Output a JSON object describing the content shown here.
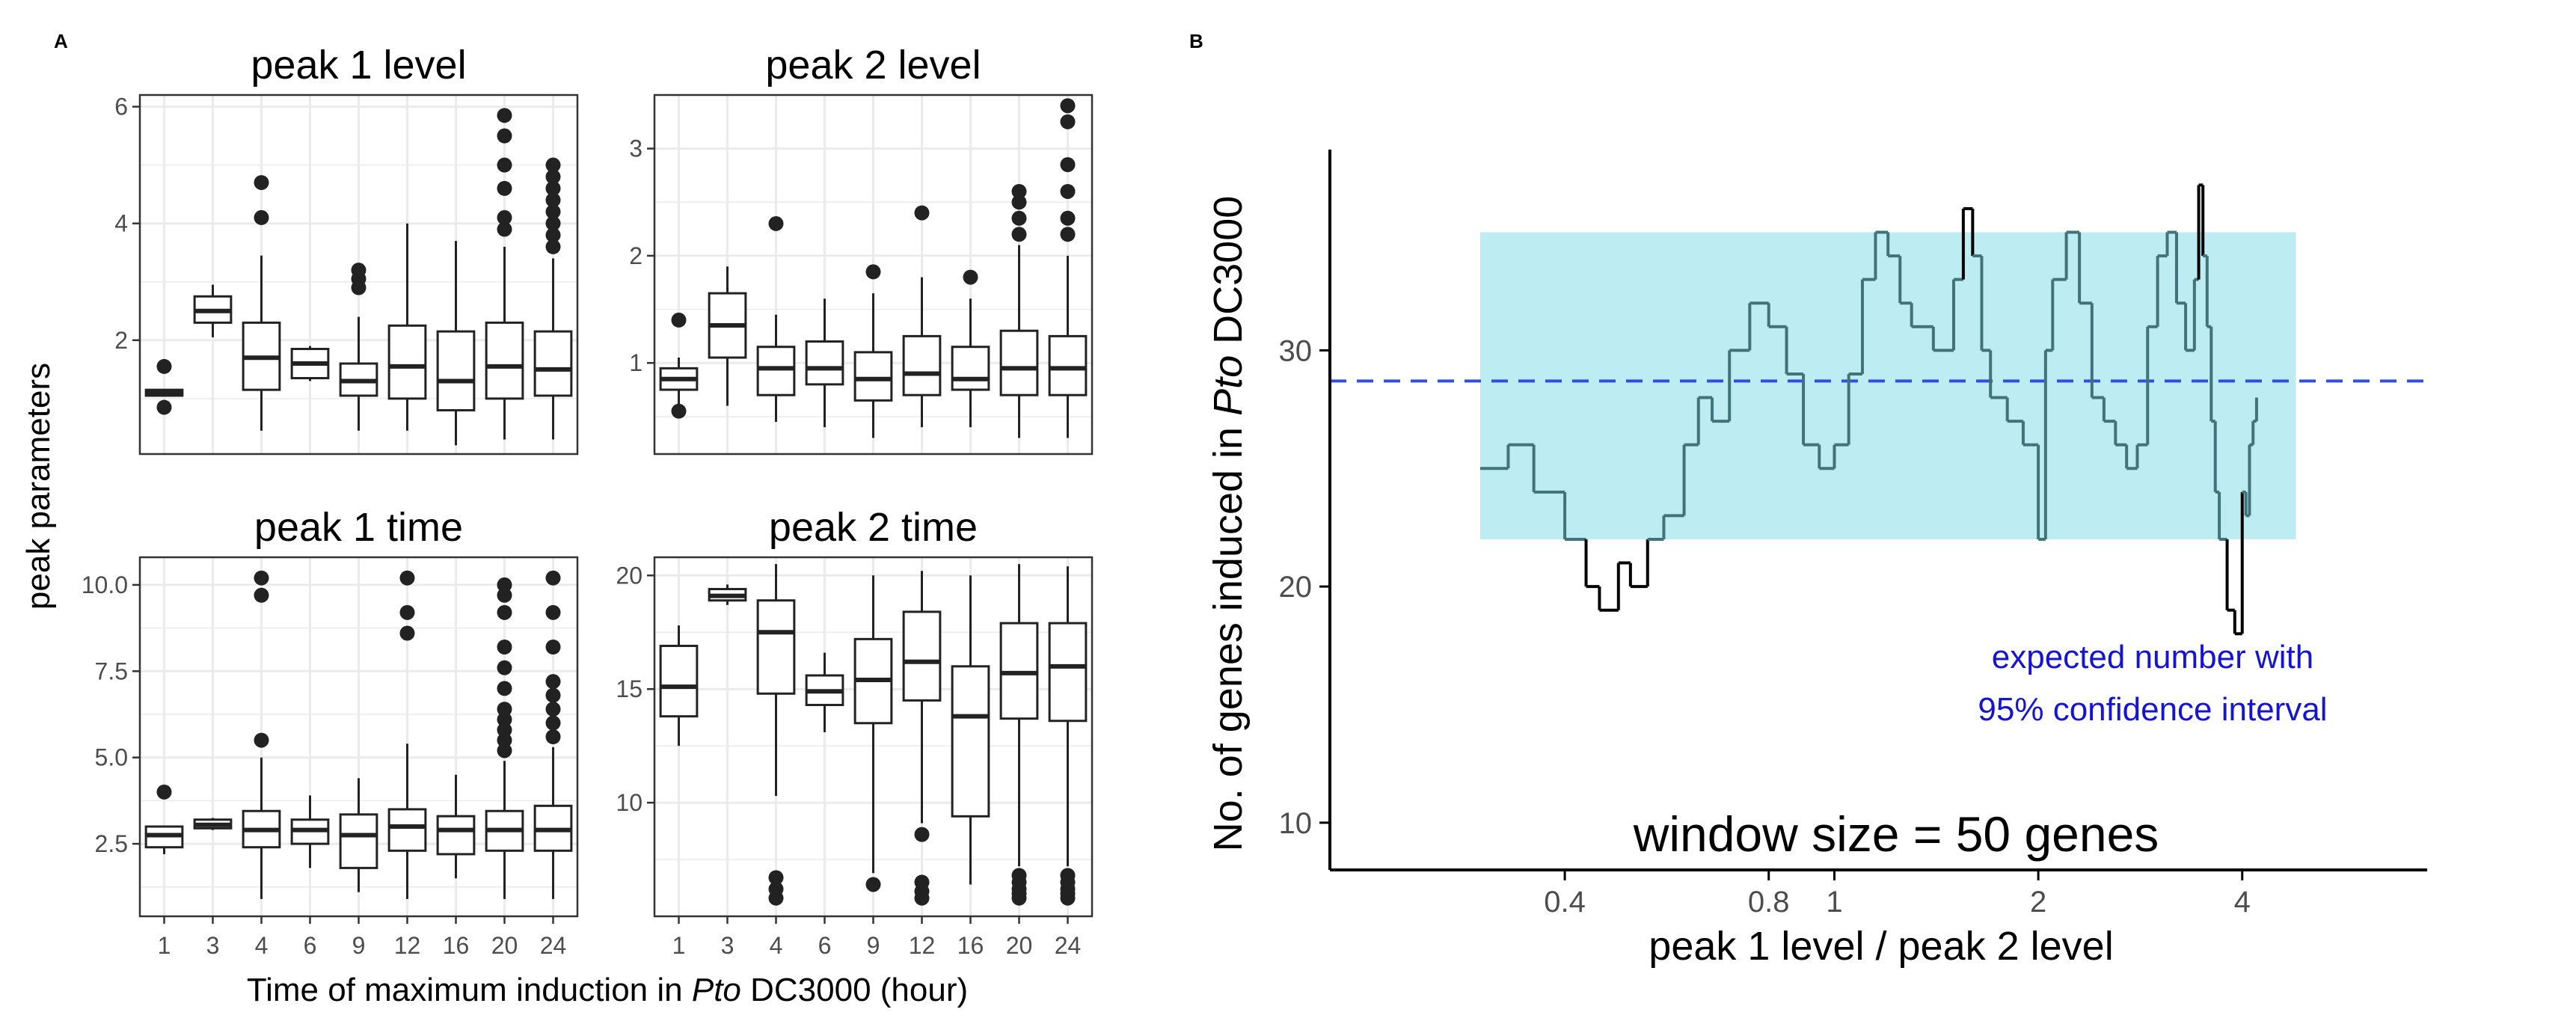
{
  "panels": {
    "a_label": "A",
    "b_label": "B"
  },
  "panel_a": {
    "ylabel": "peak parameters",
    "xlabel_prefix": "Time of maximum induction in ",
    "xlabel_italic": "Pto",
    "xlabel_suffix": " DC3000 (hour)"
  },
  "panel_b": {
    "ylabel_prefix": "No. of genes induced in ",
    "ylabel_italic": "Pto",
    "ylabel_suffix": " DC3000",
    "annotation_line1": "expected number with",
    "annotation_line2": "95% confidence interval",
    "window_text": "window size = 50 genes"
  },
  "colors": {
    "ribbon": "#bdecf2",
    "inside_line": "#41737a",
    "outside_line": "#000000",
    "dashed": "#2f4fe0",
    "annotation": "#1414d2",
    "box_outline": "#222222",
    "grid": "#ebebeb",
    "panel_border": "#333333"
  },
  "chart_data": [
    {
      "type": "boxplot",
      "title": "peak 1 level",
      "categories": [
        "1",
        "3",
        "4",
        "6",
        "9",
        "12",
        "16",
        "20",
        "24"
      ],
      "ylim": [
        0.05,
        6.2
      ],
      "yticks": [
        2,
        4,
        6
      ],
      "boxes": [
        {
          "q1": 1.05,
          "med": 1.1,
          "q3": 1.15,
          "lo": 1.05,
          "hi": 1.15,
          "out": [
            1.55,
            0.85
          ]
        },
        {
          "q1": 2.3,
          "med": 2.5,
          "q3": 2.75,
          "lo": 2.05,
          "hi": 2.95,
          "out": []
        },
        {
          "q1": 1.15,
          "med": 1.7,
          "q3": 2.3,
          "lo": 0.45,
          "hi": 3.45,
          "out": [
            4.1,
            4.7
          ]
        },
        {
          "q1": 1.35,
          "med": 1.6,
          "q3": 1.85,
          "lo": 1.3,
          "hi": 1.9,
          "out": []
        },
        {
          "q1": 1.05,
          "med": 1.3,
          "q3": 1.6,
          "lo": 0.45,
          "hi": 2.4,
          "out": [
            2.9,
            3.05,
            3.2
          ]
        },
        {
          "q1": 1.0,
          "med": 1.55,
          "q3": 2.25,
          "lo": 0.45,
          "hi": 4.0,
          "out": []
        },
        {
          "q1": 0.8,
          "med": 1.3,
          "q3": 2.15,
          "lo": 0.2,
          "hi": 3.7,
          "out": []
        },
        {
          "q1": 1.0,
          "med": 1.55,
          "q3": 2.3,
          "lo": 0.3,
          "hi": 3.6,
          "out": [
            3.9,
            4.1,
            4.6,
            5.0,
            5.5,
            5.85
          ]
        },
        {
          "q1": 1.05,
          "med": 1.5,
          "q3": 2.15,
          "lo": 0.3,
          "hi": 3.4,
          "out": [
            3.6,
            3.8,
            4.0,
            4.2,
            4.4,
            4.6,
            4.8,
            5.0
          ]
        }
      ]
    },
    {
      "type": "boxplot",
      "title": "peak 2 level",
      "categories": [
        "1",
        "3",
        "4",
        "6",
        "9",
        "12",
        "16",
        "20",
        "24"
      ],
      "ylim": [
        0.15,
        3.5
      ],
      "yticks": [
        1,
        2,
        3
      ],
      "boxes": [
        {
          "q1": 0.75,
          "med": 0.85,
          "q3": 0.95,
          "lo": 0.6,
          "hi": 1.05,
          "out": [
            1.4,
            0.55
          ]
        },
        {
          "q1": 1.05,
          "med": 1.35,
          "q3": 1.65,
          "lo": 0.6,
          "hi": 1.9,
          "out": []
        },
        {
          "q1": 0.7,
          "med": 0.95,
          "q3": 1.15,
          "lo": 0.45,
          "hi": 1.45,
          "out": [
            2.3
          ]
        },
        {
          "q1": 0.8,
          "med": 0.95,
          "q3": 1.2,
          "lo": 0.4,
          "hi": 1.6,
          "out": []
        },
        {
          "q1": 0.65,
          "med": 0.85,
          "q3": 1.1,
          "lo": 0.3,
          "hi": 1.65,
          "out": [
            1.85
          ]
        },
        {
          "q1": 0.7,
          "med": 0.9,
          "q3": 1.25,
          "lo": 0.4,
          "hi": 1.8,
          "out": [
            2.4
          ]
        },
        {
          "q1": 0.75,
          "med": 0.85,
          "q3": 1.15,
          "lo": 0.4,
          "hi": 1.6,
          "out": [
            1.8
          ]
        },
        {
          "q1": 0.7,
          "med": 0.95,
          "q3": 1.3,
          "lo": 0.3,
          "hi": 2.1,
          "out": [
            2.2,
            2.35,
            2.5,
            2.6
          ]
        },
        {
          "q1": 0.7,
          "med": 0.95,
          "q3": 1.25,
          "lo": 0.3,
          "hi": 2.0,
          "out": [
            2.2,
            2.35,
            2.6,
            2.85,
            3.25,
            3.4
          ]
        }
      ]
    },
    {
      "type": "boxplot",
      "title": "peak 1 time",
      "categories": [
        "1",
        "3",
        "4",
        "6",
        "9",
        "12",
        "16",
        "20",
        "24"
      ],
      "ylim": [
        0.4,
        10.8
      ],
      "yticks": [
        2.5,
        5.0,
        7.5,
        10.0
      ],
      "ytick_labels": [
        "2.5",
        "5.0",
        "7.5",
        "10.0"
      ],
      "boxes": [
        {
          "q1": 2.4,
          "med": 2.75,
          "q3": 3.0,
          "lo": 2.2,
          "hi": 3.0,
          "out": [
            4.0
          ]
        },
        {
          "q1": 2.95,
          "med": 3.05,
          "q3": 3.2,
          "lo": 2.9,
          "hi": 3.25,
          "out": []
        },
        {
          "q1": 2.4,
          "med": 2.9,
          "q3": 3.45,
          "lo": 0.9,
          "hi": 5.0,
          "out": [
            5.5,
            9.7,
            10.2
          ]
        },
        {
          "q1": 2.5,
          "med": 2.9,
          "q3": 3.2,
          "lo": 1.8,
          "hi": 3.9,
          "out": []
        },
        {
          "q1": 1.8,
          "med": 2.75,
          "q3": 3.35,
          "lo": 1.1,
          "hi": 4.4,
          "out": []
        },
        {
          "q1": 2.3,
          "med": 3.0,
          "q3": 3.5,
          "lo": 0.9,
          "hi": 5.4,
          "out": [
            8.6,
            9.2,
            10.2
          ]
        },
        {
          "q1": 2.2,
          "med": 2.9,
          "q3": 3.3,
          "lo": 1.5,
          "hi": 4.5,
          "out": []
        },
        {
          "q1": 2.3,
          "med": 2.9,
          "q3": 3.45,
          "lo": 0.9,
          "hi": 4.9,
          "out": [
            5.2,
            5.5,
            5.8,
            6.1,
            6.4,
            7.0,
            7.6,
            8.2,
            9.2,
            9.7,
            10.0
          ]
        },
        {
          "q1": 2.3,
          "med": 2.9,
          "q3": 3.6,
          "lo": 0.9,
          "hi": 5.3,
          "out": [
            5.6,
            6.0,
            6.4,
            6.8,
            7.2,
            8.2,
            9.2,
            10.2
          ]
        }
      ]
    },
    {
      "type": "boxplot",
      "title": "peak 2 time",
      "categories": [
        "1",
        "3",
        "4",
        "6",
        "9",
        "12",
        "16",
        "20",
        "24"
      ],
      "ylim": [
        5.0,
        20.8
      ],
      "yticks": [
        10,
        15,
        20
      ],
      "boxes": [
        {
          "q1": 13.8,
          "med": 15.1,
          "q3": 16.9,
          "lo": 12.5,
          "hi": 17.8,
          "out": []
        },
        {
          "q1": 18.9,
          "med": 19.1,
          "q3": 19.4,
          "lo": 18.7,
          "hi": 19.6,
          "out": []
        },
        {
          "q1": 14.8,
          "med": 17.5,
          "q3": 18.9,
          "lo": 10.3,
          "hi": 20.5,
          "out": [
            5.8,
            6.2,
            6.7
          ]
        },
        {
          "q1": 14.3,
          "med": 14.9,
          "q3": 15.6,
          "lo": 13.1,
          "hi": 16.6,
          "out": []
        },
        {
          "q1": 13.5,
          "med": 15.4,
          "q3": 17.2,
          "lo": 6.9,
          "hi": 20.0,
          "out": [
            6.4
          ]
        },
        {
          "q1": 14.5,
          "med": 16.2,
          "q3": 18.4,
          "lo": 9.1,
          "hi": 20.2,
          "out": [
            5.8,
            6.1,
            6.5,
            8.6
          ]
        },
        {
          "q1": 9.4,
          "med": 13.8,
          "q3": 16.0,
          "lo": 6.4,
          "hi": 20.0,
          "out": []
        },
        {
          "q1": 13.7,
          "med": 15.7,
          "q3": 17.9,
          "lo": 7.2,
          "hi": 20.5,
          "out": [
            5.8,
            6.0,
            6.2,
            6.5,
            6.8
          ]
        },
        {
          "q1": 13.6,
          "med": 16.0,
          "q3": 17.9,
          "lo": 7.2,
          "hi": 20.4,
          "out": [
            5.8,
            6.0,
            6.2,
            6.5,
            6.8
          ]
        }
      ]
    },
    {
      "type": "line",
      "xlabel": "peak 1 level / peak 2 level",
      "x_scale": "log",
      "xlim": [
        0.18,
        7.5
      ],
      "ylim": [
        8.0,
        38.5
      ],
      "xticks": [
        0.4,
        0.8,
        1,
        2,
        4
      ],
      "yticks": [
        10,
        20,
        30
      ],
      "expected": 28.7,
      "ci": [
        22,
        35
      ],
      "ci_x": [
        0.3,
        4.8
      ],
      "series": [
        {
          "x": [
            0.3,
            0.33,
            0.36,
            0.4,
            0.43,
            0.45,
            0.48,
            0.5,
            0.53,
            0.56,
            0.6,
            0.63,
            0.66,
            0.7,
            0.75,
            0.8,
            0.85,
            0.9,
            0.95,
            1.0,
            1.05,
            1.1,
            1.15,
            1.2,
            1.25,
            1.3,
            1.4,
            1.5,
            1.55,
            1.6,
            1.65,
            1.7,
            1.8,
            1.9,
            1.95,
            2.0,
            2.05,
            2.1,
            2.2,
            2.3,
            2.4,
            2.5,
            2.6,
            2.7,
            2.8,
            2.9,
            3.0,
            3.1,
            3.2,
            3.3,
            3.4,
            3.45,
            3.5,
            3.55,
            3.6,
            3.65,
            3.7,
            3.8,
            3.9,
            4.0,
            4.05,
            4.1,
            4.15,
            4.2
          ],
          "y": [
            25,
            26,
            24,
            22,
            20,
            19,
            21,
            20,
            22,
            23,
            26,
            28,
            27,
            30,
            32,
            31,
            29,
            26,
            25,
            26,
            29,
            33,
            35,
            34,
            32,
            31,
            30,
            33,
            36,
            34,
            30,
            28,
            27,
            26,
            26,
            22,
            30,
            33,
            35,
            32,
            28,
            27,
            26,
            25,
            26,
            31,
            34,
            35,
            32,
            30,
            33,
            37,
            34,
            31,
            27,
            24,
            22,
            19,
            18,
            24,
            23,
            26,
            27,
            28
          ]
        }
      ]
    }
  ]
}
